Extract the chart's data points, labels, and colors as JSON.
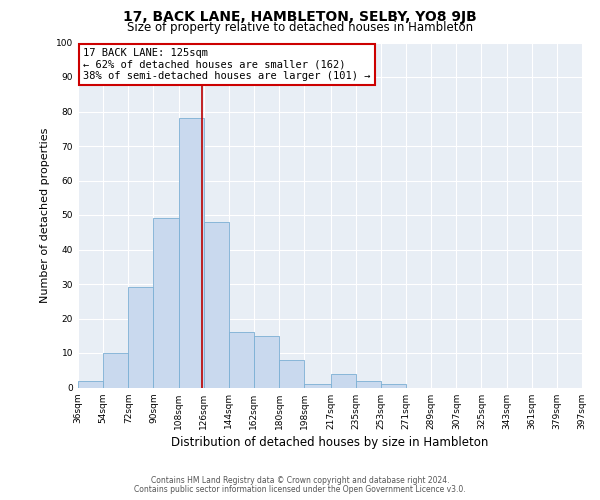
{
  "title": "17, BACK LANE, HAMBLETON, SELBY, YO8 9JB",
  "subtitle": "Size of property relative to detached houses in Hambleton",
  "xlabel": "Distribution of detached houses by size in Hambleton",
  "ylabel": "Number of detached properties",
  "bar_color": "#c9d9ee",
  "bar_edge_color": "#7bafd4",
  "bg_color": "#e8eef5",
  "grid_color": "#ffffff",
  "vline_x": 125,
  "vline_color": "#bb0000",
  "bin_edges": [
    36,
    54,
    72,
    90,
    108,
    126,
    144,
    162,
    180,
    198,
    217,
    235,
    253,
    271,
    289,
    307,
    325,
    343,
    361,
    379,
    397
  ],
  "bin_counts": [
    2,
    10,
    29,
    49,
    78,
    48,
    16,
    15,
    8,
    1,
    4,
    2,
    1,
    0,
    0,
    0,
    0,
    0,
    0,
    0
  ],
  "ylim": [
    0,
    100
  ],
  "xlim": [
    36,
    397
  ],
  "annotation_text": "17 BACK LANE: 125sqm\n← 62% of detached houses are smaller (162)\n38% of semi-detached houses are larger (101) →",
  "annotation_box_color": "#ffffff",
  "annotation_box_edge_color": "#cc0000",
  "footnote1": "Contains HM Land Registry data © Crown copyright and database right 2024.",
  "footnote2": "Contains public sector information licensed under the Open Government Licence v3.0.",
  "title_fontsize": 10,
  "subtitle_fontsize": 8.5,
  "ylabel_fontsize": 8,
  "xlabel_fontsize": 8.5,
  "tick_fontsize": 6.5,
  "annot_fontsize": 7.5,
  "footnote_fontsize": 5.5,
  "tick_labels": [
    "36sqm",
    "54sqm",
    "72sqm",
    "90sqm",
    "108sqm",
    "126sqm",
    "144sqm",
    "162sqm",
    "180sqm",
    "198sqm",
    "217sqm",
    "235sqm",
    "253sqm",
    "271sqm",
    "289sqm",
    "307sqm",
    "325sqm",
    "343sqm",
    "361sqm",
    "379sqm",
    "397sqm"
  ]
}
